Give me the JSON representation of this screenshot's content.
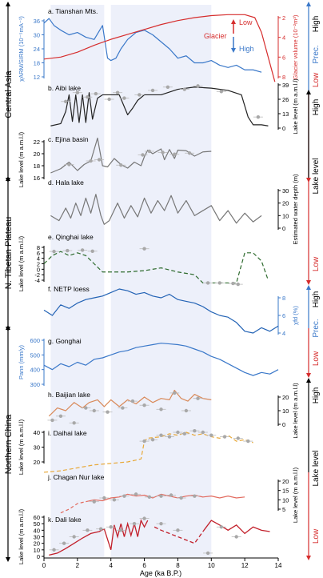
{
  "figure": {
    "x_axis": {
      "label": "Age (ka B.P.)",
      "ticks": [
        0,
        2,
        4,
        6,
        8,
        10,
        12,
        14
      ],
      "range": [
        0,
        14
      ]
    },
    "shaded_intervals": [
      [
        0.4,
        3.6
      ],
      [
        4.0,
        10.0
      ]
    ],
    "regions": [
      "Central Asia",
      "N. Tibetan Plateau",
      "Northern China"
    ],
    "right_brackets": [
      {
        "top": "High",
        "bottom": "Low",
        "mid": "Prec."
      },
      {
        "top": "High",
        "bottom": "Low",
        "mid": "Lake level"
      },
      {
        "top": "High",
        "bottom": "Low",
        "mid": "Prec."
      },
      {
        "top": "High",
        "bottom": "Low",
        "mid": "Lake level"
      }
    ]
  },
  "chart_data": [
    {
      "id": "a",
      "title": "a. Tianshan Mts.",
      "type": "line",
      "left_axis": {
        "label": "χARM/SIRM (10⁻⁵mA⁻¹)",
        "ticks": [
          12,
          18,
          24,
          30,
          36
        ]
      },
      "right_axis": {
        "label": "Glacier volume (10⁻²m³)",
        "ticks": [
          2,
          4,
          6,
          8
        ]
      },
      "annotations": [
        "Low",
        "Glacier",
        "High"
      ],
      "series": [
        {
          "axis": "left",
          "color": "#3a78c9",
          "x": [
            0.0,
            0.3,
            0.6,
            1.0,
            1.5,
            2.0,
            2.5,
            3.0,
            3.5,
            3.8,
            4.0,
            4.3,
            4.6,
            5.0,
            5.5,
            6.0,
            6.5,
            7.0,
            7.5,
            8.0,
            8.5,
            9.0,
            9.5,
            10.0,
            10.5,
            11.0,
            11.5,
            12.0,
            12.5,
            13.0
          ],
          "y": [
            35,
            37,
            34,
            32,
            30,
            31,
            29,
            28,
            34,
            20,
            19,
            20,
            24,
            28,
            31,
            32,
            30,
            27,
            24,
            20,
            21,
            18,
            18,
            19,
            17,
            16,
            17,
            15,
            15,
            14
          ]
        },
        {
          "axis": "right",
          "color": "#d62d2d",
          "x": [
            0.0,
            1.0,
            2.0,
            3.0,
            4.0,
            5.0,
            6.0,
            7.0,
            8.0,
            9.0,
            10.0,
            11.0,
            12.0,
            12.6,
            13.0,
            13.4,
            13.8
          ],
          "y": [
            6.2,
            6.0,
            5.5,
            4.8,
            4.2,
            3.7,
            3.2,
            2.7,
            2.3,
            2.0,
            1.8,
            1.7,
            1.7,
            2.0,
            3.5,
            6.0,
            8.5
          ]
        }
      ]
    },
    {
      "id": "b",
      "title": "b. Aibi lake",
      "type": "line",
      "right_axis": {
        "label": "Lake level (m a.m.l.l)",
        "ticks": [
          0,
          13,
          26,
          39
        ]
      },
      "series": [
        {
          "axis": "right",
          "color": "#222222",
          "x": [
            0.4,
            1.0,
            1.3,
            1.5,
            1.7,
            1.9,
            2.1,
            2.3,
            2.5,
            2.7,
            2.9,
            3.2,
            3.5,
            4.0,
            4.5,
            5.0,
            5.3,
            5.6,
            6.0,
            7.0,
            8.0,
            9.0,
            10.0,
            11.0,
            11.8,
            12.2,
            12.5,
            13.0,
            13.4
          ],
          "y": [
            2,
            4,
            15,
            30,
            6,
            30,
            5,
            30,
            5,
            32,
            8,
            27,
            30,
            30,
            30,
            12,
            18,
            25,
            30,
            30,
            35,
            37,
            36,
            34,
            30,
            10,
            3,
            3,
            2
          ]
        }
      ],
      "points": {
        "x": [
          1.3,
          2.0,
          2.6,
          3.1,
          3.9,
          4.4,
          4.8,
          5.7,
          6.5,
          7.4,
          8.4,
          9.2,
          10.6,
          12.8
        ],
        "y": [
          24,
          32,
          28,
          31,
          26,
          32,
          27,
          30,
          34,
          37,
          35,
          38,
          33,
          10
        ]
      }
    },
    {
      "id": "c",
      "title": "c. Ejina basin",
      "type": "line",
      "left_axis": {
        "label": "Lake level (m a.m.l.l)",
        "ticks": [
          16,
          18,
          20,
          22
        ]
      },
      "series": [
        {
          "axis": "left",
          "color": "#777777",
          "x": [
            0.4,
            1.0,
            1.5,
            2.0,
            2.4,
            2.8,
            3.2,
            3.5,
            3.8,
            4.2,
            4.6,
            5.0,
            5.4,
            5.8,
            6.0,
            6.2,
            6.5,
            7.0,
            7.2,
            7.5,
            7.8,
            8.0,
            8.5,
            9.0,
            9.5,
            10.0
          ],
          "y": [
            16.8,
            17.5,
            18.6,
            17.2,
            18.2,
            18.8,
            22.6,
            18.0,
            17.8,
            19.2,
            18.2,
            17.6,
            18.6,
            18.0,
            19.5,
            20.6,
            20.0,
            20.8,
            19.0,
            20.7,
            19.2,
            20.6,
            20.5,
            19.6,
            20.3,
            20.4
          ]
        }
      ],
      "points": {
        "x": [
          1.5,
          2.8,
          3.3,
          4.6,
          5.9,
          6.3,
          7.1,
          7.8,
          8.7
        ],
        "y": [
          18.2,
          18.8,
          19.0,
          18.1,
          19.8,
          20.4,
          20.2,
          19.9,
          20.1
        ]
      }
    },
    {
      "id": "d",
      "title": "d. Hala lake",
      "type": "line",
      "right_axis": {
        "label": "Estimated water depth (m)",
        "ticks": [
          0,
          10,
          20,
          30
        ]
      },
      "series": [
        {
          "axis": "right",
          "color": "#777777",
          "x": [
            0.4,
            0.9,
            1.3,
            1.6,
            1.9,
            2.2,
            2.5,
            2.8,
            3.1,
            3.4,
            3.6,
            3.9,
            4.4,
            4.8,
            5.2,
            5.6,
            6.0,
            6.4,
            6.8,
            7.2,
            7.6,
            8.0,
            8.5,
            9.0,
            9.5,
            10.0,
            10.5,
            11.0,
            11.5,
            12.0,
            12.5,
            13.0
          ],
          "y": [
            10,
            6,
            16,
            8,
            20,
            10,
            24,
            12,
            27,
            10,
            3,
            6,
            20,
            8,
            18,
            9,
            24,
            12,
            22,
            14,
            26,
            12,
            22,
            10,
            14,
            18,
            6,
            14,
            4,
            12,
            5,
            10
          ]
        }
      ]
    },
    {
      "id": "e",
      "title": "e. Qinghai lake",
      "type": "line",
      "left_axis": {
        "label": "Lake level (m a.m.l.l)",
        "ticks": [
          -4,
          -2,
          0,
          2,
          4,
          6,
          8
        ]
      },
      "series": [
        {
          "axis": "left",
          "color": "#2e6b2e",
          "dashed": true,
          "x": [
            0.0,
            0.5,
            1.0,
            1.5,
            2.0,
            2.5,
            3.0,
            3.5,
            4.0,
            5.0,
            6.0,
            7.0,
            8.0,
            9.0,
            9.5,
            10.0,
            11.0,
            11.5,
            12.0,
            12.5,
            13.0,
            13.4
          ],
          "y": [
            2,
            5,
            6.5,
            5,
            6,
            5,
            2,
            -1,
            -1,
            -1,
            -0.5,
            0.5,
            -1,
            -2,
            -5,
            -5,
            -5,
            -5,
            6,
            6,
            3,
            -4
          ]
        }
      ],
      "points": {
        "x": [
          0.6,
          1.4,
          2.3,
          2.9,
          6.0,
          9.8,
          10.5,
          11.3,
          11.6
        ],
        "y": [
          6.5,
          6.8,
          7.0,
          6.6,
          7.5,
          -5,
          -5,
          -5.2,
          -5.5
        ]
      }
    },
    {
      "id": "f",
      "title": "f. NETP loess",
      "type": "line",
      "right_axis": {
        "label": "χfd (%)",
        "ticks": [
          4,
          6,
          8
        ]
      },
      "series": [
        {
          "axis": "right",
          "color": "#2363b5",
          "x": [
            0.0,
            0.5,
            1.0,
            1.5,
            2.0,
            2.5,
            3.0,
            3.5,
            4.0,
            4.5,
            5.0,
            5.5,
            6.0,
            6.5,
            7.0,
            7.5,
            8.0,
            8.5,
            9.0,
            9.5,
            10.0,
            10.5,
            11.0,
            11.5,
            12.0,
            12.5,
            13.0,
            13.5,
            14.0
          ],
          "y": [
            6.6,
            6.0,
            7.2,
            6.8,
            7.4,
            7.8,
            8.0,
            8.2,
            8.6,
            9.0,
            8.8,
            8.4,
            8.6,
            8.2,
            8.0,
            8.4,
            7.8,
            7.6,
            7.4,
            7.0,
            6.4,
            6.0,
            5.8,
            5.2,
            4.2,
            4.0,
            4.6,
            4.2,
            4.8
          ]
        }
      ]
    },
    {
      "id": "g",
      "title": "g. Gonghai",
      "type": "line",
      "left_axis": {
        "label": "Pann (mm/y)",
        "ticks": [
          300,
          400,
          500,
          600
        ]
      },
      "series": [
        {
          "axis": "left",
          "color": "#3a78c9",
          "x": [
            0.0,
            0.5,
            1.0,
            1.5,
            2.0,
            2.5,
            3.0,
            3.5,
            4.0,
            4.5,
            5.0,
            5.5,
            6.0,
            6.5,
            7.0,
            7.5,
            8.0,
            8.5,
            9.0,
            9.5,
            10.0,
            10.5,
            11.0,
            11.5,
            12.0,
            12.5,
            13.0,
            13.5,
            14.0
          ],
          "y": [
            430,
            400,
            440,
            420,
            450,
            430,
            470,
            480,
            500,
            520,
            530,
            550,
            560,
            570,
            580,
            575,
            570,
            560,
            540,
            520,
            490,
            470,
            440,
            410,
            380,
            360,
            380,
            370,
            400
          ]
        }
      ]
    },
    {
      "id": "h",
      "title": "h. Baijian lake",
      "type": "line",
      "right_axis": {
        "label": "Lake level (m a.m.l.l)",
        "ticks": [
          0,
          10,
          20
        ]
      },
      "series": [
        {
          "axis": "right",
          "color": "#d98a5a",
          "x": [
            0.3,
            0.8,
            1.3,
            1.8,
            2.3,
            2.7,
            3.2,
            3.6,
            4.0,
            4.5,
            5.0,
            5.5,
            6.0,
            6.5,
            7.0,
            7.5,
            7.8,
            8.2,
            8.6,
            9.0,
            9.5,
            10.0
          ],
          "y": [
            6,
            12,
            10,
            16,
            12,
            16,
            18,
            13,
            18,
            13,
            18,
            15,
            20,
            16,
            19,
            18,
            25,
            19,
            17,
            22,
            19,
            18
          ]
        }
      ],
      "points": {
        "x": [
          0.5,
          1.0,
          1.8,
          2.5,
          3.0,
          3.8,
          4.7,
          5.3,
          6.0,
          7.0,
          7.8,
          8.5,
          9.2
        ],
        "y": [
          3,
          6,
          1,
          12,
          10,
          9,
          12,
          17,
          14,
          11,
          23,
          10,
          19
        ]
      }
    },
    {
      "id": "i",
      "title": "i. Daihai lake",
      "type": "line",
      "left_axis": {
        "label": "Lake level (m a.m.l.l)",
        "ticks": [
          20,
          30,
          40
        ]
      },
      "series": [
        {
          "axis": "left",
          "color": "#e8a93a",
          "dashed": true,
          "x": [
            0.0,
            1.0,
            2.0,
            3.0,
            4.0,
            5.0,
            5.8,
            6.0,
            6.2,
            7.0,
            7.5,
            8.0,
            8.5,
            9.0,
            9.5,
            10.0,
            10.5,
            11.0,
            11.5,
            12.0,
            12.5
          ],
          "y": [
            13,
            14,
            16,
            18,
            19,
            20,
            22,
            34,
            36,
            37,
            39,
            38,
            40,
            38,
            39,
            37,
            36,
            38,
            34,
            35,
            33
          ]
        }
      ],
      "points": {
        "x": [
          6.0,
          6.5,
          7.0,
          7.5,
          8.0,
          8.4,
          9.0,
          9.5,
          10.0,
          10.8,
          11.6,
          12.2
        ],
        "y": [
          34,
          35,
          38,
          37,
          40,
          39,
          41,
          40,
          38,
          37,
          36,
          34
        ]
      }
    },
    {
      "id": "j",
      "title": "j. Chagan Nur lake",
      "type": "line",
      "right_axis": {
        "label": "Lake level (m a.m.l.l)",
        "ticks": [
          5,
          10,
          15,
          20
        ]
      },
      "series": [
        {
          "axis": "right",
          "color": "#e26a5e",
          "dashed_until": 2.5,
          "x": [
            1.0,
            1.5,
            2.0,
            2.5,
            3.0,
            3.5,
            4.0,
            4.5,
            5.0,
            5.5,
            6.0,
            6.5,
            7.0,
            7.5,
            8.0,
            8.5,
            9.0,
            9.5,
            10.0,
            10.5,
            11.0,
            11.5,
            12.0
          ],
          "y": [
            3,
            5,
            8,
            9,
            10,
            9.5,
            11,
            11.5,
            13,
            12,
            12.5,
            11,
            13,
            12,
            11,
            12,
            12.5,
            11.5,
            12,
            11,
            12,
            11,
            11.5
          ]
        }
      ],
      "points": {
        "x": [
          3.0,
          3.6,
          4.2,
          4.8,
          5.5,
          6.3,
          7.0,
          7.6,
          8.2,
          9.0
        ],
        "y": [
          9,
          11,
          10,
          12,
          13,
          11.5,
          12,
          12.5,
          11,
          12
        ]
      }
    },
    {
      "id": "k",
      "title": "k. Dali lake",
      "type": "line",
      "left_axis": {
        "label": "Lake level (m a.m.l.l)",
        "ticks": [
          0,
          10,
          20,
          30,
          40,
          50,
          60
        ]
      },
      "series": [
        {
          "axis": "left",
          "color": "#c21f2a",
          "dashed_from": 6.3,
          "dashed_to": 9.5,
          "x": [
            0.3,
            0.8,
            1.3,
            1.8,
            2.3,
            2.8,
            3.3,
            3.6,
            4.0,
            4.2,
            4.4,
            4.6,
            4.8,
            5.0,
            5.2,
            5.4,
            5.6,
            5.8,
            6.0,
            6.2,
            6.6,
            7.0,
            7.5,
            8.0,
            8.5,
            9.0,
            9.5,
            10.0,
            10.5,
            11.0,
            11.5,
            12.0,
            12.5,
            13.0,
            13.5
          ],
          "y": [
            2,
            5,
            12,
            20,
            28,
            35,
            38,
            42,
            10,
            48,
            30,
            50,
            30,
            50,
            32,
            50,
            30,
            55,
            45,
            55,
            45,
            40,
            35,
            30,
            25,
            20,
            38,
            55,
            48,
            40,
            48,
            35,
            45,
            40,
            38
          ]
        }
      ],
      "points": {
        "x": [
          0.6,
          1.2,
          1.8,
          2.6,
          3.4,
          4.0,
          4.6,
          5.4,
          6.0,
          7.0,
          8.0,
          9.8,
          10.6,
          11.5
        ],
        "y": [
          10,
          20,
          30,
          40,
          42,
          45,
          40,
          50,
          58,
          50,
          40,
          5,
          45,
          30
        ]
      }
    }
  ]
}
